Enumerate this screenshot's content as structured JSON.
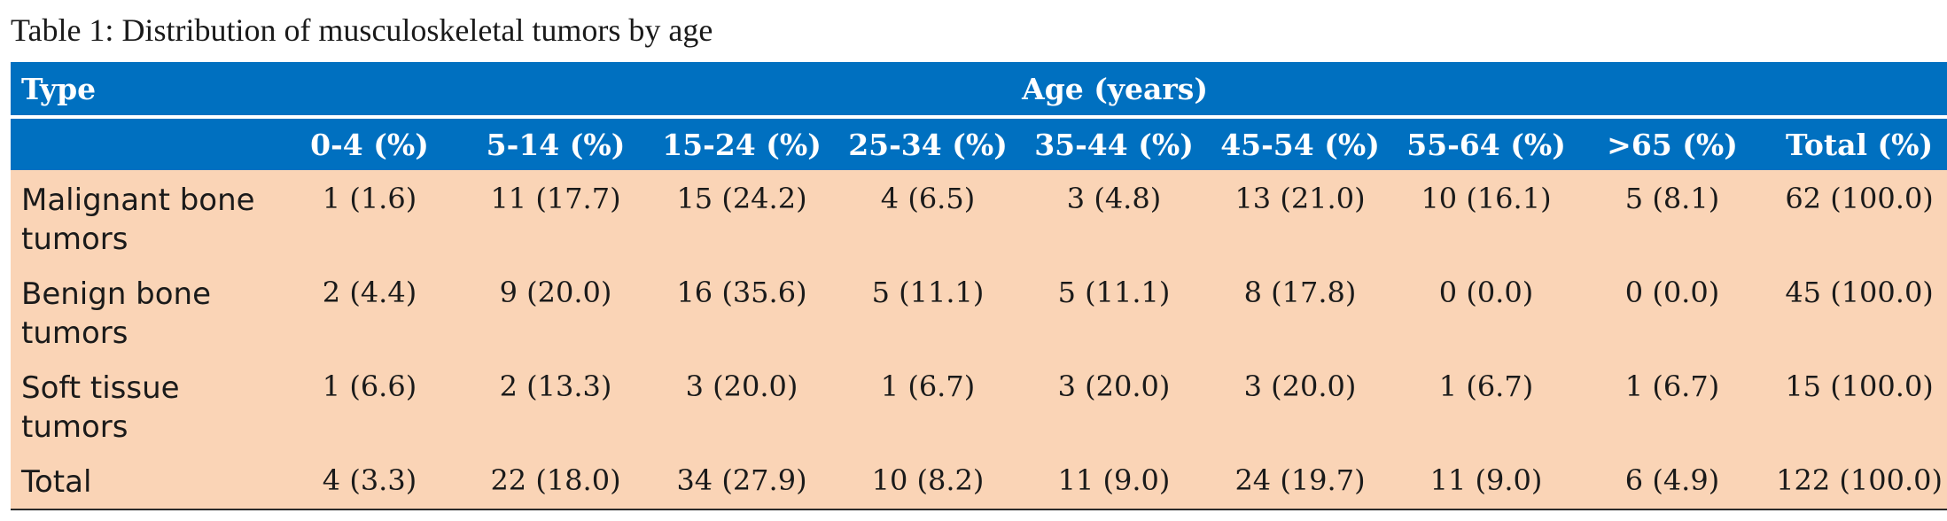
{
  "caption": "Table 1: Distribution of musculoskeletal tumors by age",
  "header": {
    "type_label": "Type",
    "group_label": "Age (years)",
    "columns": [
      "0-4 (%)",
      "5-14 (%)",
      "15-24 (%)",
      "25-34 (%)",
      "35-44 (%)",
      "45-54 (%)",
      "55-64 (%)",
      ">65 (%)",
      "Total (%)"
    ]
  },
  "rows": [
    {
      "type": "Malignant bone tumors",
      "values": [
        "1 (1.6)",
        "11 (17.7)",
        "15 (24.2)",
        "4 (6.5)",
        "3 (4.8)",
        "13 (21.0)",
        "10 (16.1)",
        "5 (8.1)",
        "62 (100.0)"
      ]
    },
    {
      "type": "Benign bone tumors",
      "values": [
        "2 (4.4)",
        "9 (20.0)",
        "16 (35.6)",
        "5 (11.1)",
        "5 (11.1)",
        "8 (17.8)",
        "0 (0.0)",
        "0 (0.0)",
        "45 (100.0)"
      ]
    },
    {
      "type": "Soft tissue tumors",
      "values": [
        "1 (6.6)",
        "2 (13.3)",
        "3 (20.0)",
        "1 (6.7)",
        "3 (20.0)",
        "3 (20.0)",
        "1 (6.7)",
        "1 (6.7)",
        "15 (100.0)"
      ]
    },
    {
      "type": "Total",
      "values": [
        "4 (3.3)",
        "22 (18.0)",
        "34 (27.9)",
        "10 (8.2)",
        "11 (9.0)",
        "24 (19.7)",
        "11 (9.0)",
        "6 (4.9)",
        "122 (100.0)"
      ]
    }
  ],
  "colors": {
    "header_bg": "#0070c0",
    "header_text": "#ffffff",
    "body_bg": "#fad4b6"
  }
}
